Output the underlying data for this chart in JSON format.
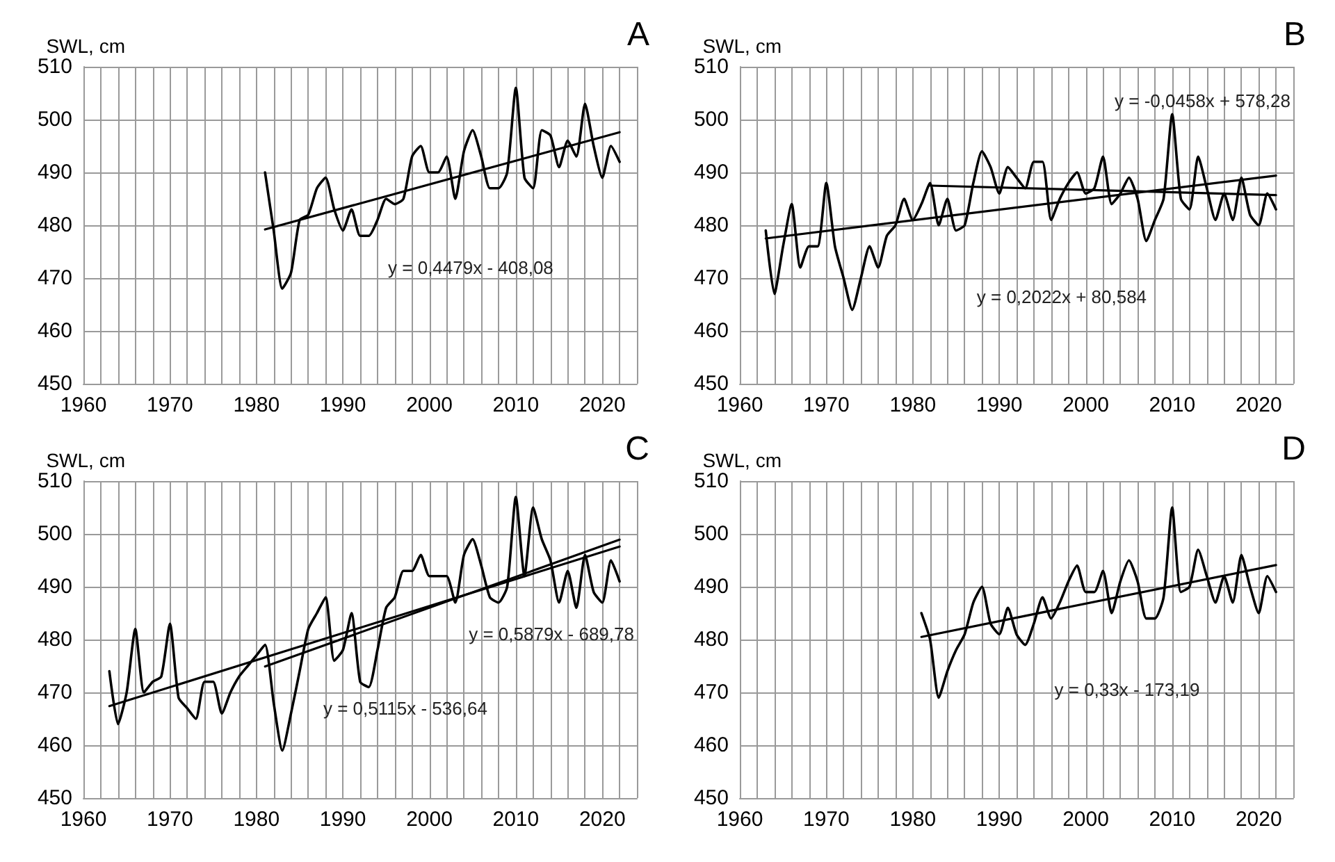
{
  "chart_data": [
    {
      "type": "line",
      "title": "A",
      "ylabel": "SWL, cm",
      "xlim": [
        1960,
        2024
      ],
      "ylim": [
        450,
        510
      ],
      "yticks": [
        450,
        460,
        470,
        480,
        490,
        500,
        510
      ],
      "xticks": [
        1960,
        {
          "value": 1962,
          "label": null
        },
        {
          "value": 1964,
          "label": null
        },
        {
          "value": 1966,
          "label": null
        },
        {
          "value": 1968,
          "label": null
        },
        1970,
        {
          "value": 1972,
          "label": null
        },
        {
          "value": 1974,
          "label": null
        },
        {
          "value": 1976,
          "label": null
        },
        {
          "value": 1978,
          "label": null
        },
        1980,
        {
          "value": 1982,
          "label": null
        },
        {
          "value": 1984,
          "label": null
        },
        {
          "value": 1986,
          "label": null
        },
        {
          "value": 1988,
          "label": null
        },
        1990,
        {
          "value": 1992,
          "label": null
        },
        {
          "value": 1994,
          "label": null
        },
        {
          "value": 1996,
          "label": null
        },
        {
          "value": 1998,
          "label": null
        },
        2000,
        {
          "value": 2002,
          "label": null
        },
        {
          "value": 2004,
          "label": null
        },
        {
          "value": 2006,
          "label": null
        },
        {
          "value": 2008,
          "label": null
        },
        2010,
        {
          "value": 2012,
          "label": null
        },
        {
          "value": 2014,
          "label": null
        },
        {
          "value": 2016,
          "label": null
        },
        {
          "value": 2018,
          "label": null
        },
        2020,
        {
          "value": 2022,
          "label": null
        },
        {
          "value": 2024,
          "label": null
        }
      ],
      "grid": true,
      "marker": "none",
      "line_style": "solid",
      "series": [
        {
          "color": "#000000",
          "x": [
            1981,
            1982,
            1983,
            1984,
            1985,
            1986,
            1987,
            1988,
            1989,
            1990,
            1991,
            1992,
            1993,
            1994,
            1995,
            1996,
            1997,
            1998,
            1999,
            2000,
            2001,
            2002,
            2003,
            2004,
            2005,
            2006,
            2007,
            2008,
            2009,
            2010,
            2011,
            2012,
            2013,
            2014,
            2015,
            2016,
            2017,
            2018,
            2019,
            2020,
            2021,
            2022
          ],
          "values": [
            490,
            479,
            468,
            471,
            481,
            482,
            487,
            489,
            483,
            479,
            483,
            478,
            478,
            481,
            485,
            484,
            485,
            493,
            495,
            490,
            490,
            493,
            485,
            494,
            498,
            493,
            487,
            487,
            490,
            506,
            489,
            487,
            498,
            497,
            491,
            496,
            493,
            503,
            495,
            489,
            495,
            492
          ]
        },
        {
          "type": "line",
          "color": "#000000",
          "x": [
            1981,
            2022
          ],
          "values": [
            479.2,
            497.6
          ]
        }
      ],
      "annotations": [
        "y = 0,4479x - 408,08"
      ]
    },
    {
      "type": "line",
      "title": "B",
      "ylabel": "SWL, cm",
      "xlim": [
        1960,
        2024
      ],
      "ylim": [
        450,
        510
      ],
      "yticks": [
        450,
        460,
        470,
        480,
        490,
        500,
        510
      ],
      "xticks": [
        1960,
        {
          "value": 1962,
          "label": null
        },
        {
          "value": 1964,
          "label": null
        },
        {
          "value": 1966,
          "label": null
        },
        {
          "value": 1968,
          "label": null
        },
        1970,
        {
          "value": 1972,
          "label": null
        },
        {
          "value": 1974,
          "label": null
        },
        {
          "value": 1976,
          "label": null
        },
        {
          "value": 1978,
          "label": null
        },
        1980,
        {
          "value": 1982,
          "label": null
        },
        {
          "value": 1984,
          "label": null
        },
        {
          "value": 1986,
          "label": null
        },
        {
          "value": 1988,
          "label": null
        },
        1990,
        {
          "value": 1992,
          "label": null
        },
        {
          "value": 1994,
          "label": null
        },
        {
          "value": 1996,
          "label": null
        },
        {
          "value": 1998,
          "label": null
        },
        2000,
        {
          "value": 2002,
          "label": null
        },
        {
          "value": 2004,
          "label": null
        },
        {
          "value": 2006,
          "label": null
        },
        {
          "value": 2008,
          "label": null
        },
        2010,
        {
          "value": 2012,
          "label": null
        },
        {
          "value": 2014,
          "label": null
        },
        {
          "value": 2016,
          "label": null
        },
        {
          "value": 2018,
          "label": null
        },
        2020,
        {
          "value": 2022,
          "label": null
        },
        {
          "value": 2024,
          "label": null
        }
      ],
      "grid": true,
      "marker": "none",
      "line_style": "solid",
      "series": [
        {
          "color": "#000000",
          "x": [
            1963,
            1964,
            1965,
            1966,
            1967,
            1968,
            1969,
            1970,
            1971,
            1972,
            1973,
            1974,
            1975,
            1976,
            1977,
            1978,
            1979,
            1980,
            1981,
            1982,
            1983,
            1984,
            1985,
            1986,
            1987,
            1988,
            1989,
            1990,
            1991,
            1992,
            1993,
            1994,
            1995,
            1996,
            1997,
            1998,
            1999,
            2000,
            2001,
            2002,
            2003,
            2004,
            2005,
            2006,
            2007,
            2008,
            2009,
            2010,
            2011,
            2012,
            2013,
            2014,
            2015,
            2016,
            2017,
            2018,
            2019,
            2020,
            2021,
            2022
          ],
          "values": [
            479,
            467,
            476,
            484,
            472,
            476,
            476,
            488,
            476,
            470,
            464,
            470,
            476,
            472,
            478,
            480,
            485,
            481,
            484,
            488,
            480,
            485,
            479,
            480,
            488,
            494,
            491,
            486,
            491,
            489,
            487,
            492,
            492,
            481,
            485,
            488,
            490,
            486,
            487,
            493,
            484,
            486,
            489,
            485,
            477,
            481,
            485,
            501,
            485,
            483,
            493,
            487,
            481,
            486,
            481,
            489,
            482,
            480,
            486,
            483
          ]
        },
        {
          "type": "line",
          "color": "#000000",
          "x": [
            1963,
            2022
          ],
          "values": [
            477.5,
            489.4
          ]
        },
        {
          "type": "line",
          "color": "#000000",
          "x": [
            1982,
            2022
          ],
          "values": [
            487.5,
            485.7
          ]
        }
      ],
      "annotations": [
        "y = 0,2022x + 80,584",
        "y = -0,0458x + 578,28"
      ]
    },
    {
      "type": "line",
      "title": "C",
      "ylabel": "SWL, cm",
      "xlim": [
        1960,
        2024
      ],
      "ylim": [
        450,
        510
      ],
      "yticks": [
        450,
        460,
        470,
        480,
        490,
        500,
        510
      ],
      "xticks": [
        1960,
        {
          "value": 1962,
          "label": null
        },
        {
          "value": 1964,
          "label": null
        },
        {
          "value": 1966,
          "label": null
        },
        {
          "value": 1968,
          "label": null
        },
        1970,
        {
          "value": 1972,
          "label": null
        },
        {
          "value": 1974,
          "label": null
        },
        {
          "value": 1976,
          "label": null
        },
        {
          "value": 1978,
          "label": null
        },
        1980,
        {
          "value": 1982,
          "label": null
        },
        {
          "value": 1984,
          "label": null
        },
        {
          "value": 1986,
          "label": null
        },
        {
          "value": 1988,
          "label": null
        },
        1990,
        {
          "value": 1992,
          "label": null
        },
        {
          "value": 1994,
          "label": null
        },
        {
          "value": 1996,
          "label": null
        },
        {
          "value": 1998,
          "label": null
        },
        2000,
        {
          "value": 2002,
          "label": null
        },
        {
          "value": 2004,
          "label": null
        },
        {
          "value": 2006,
          "label": null
        },
        {
          "value": 2008,
          "label": null
        },
        2010,
        {
          "value": 2012,
          "label": null
        },
        {
          "value": 2014,
          "label": null
        },
        {
          "value": 2016,
          "label": null
        },
        {
          "value": 2018,
          "label": null
        },
        2020,
        {
          "value": 2022,
          "label": null
        },
        {
          "value": 2024,
          "label": null
        }
      ],
      "grid": true,
      "marker": "none",
      "line_style": "solid",
      "series": [
        {
          "color": "#000000",
          "x": [
            1963,
            1964,
            1965,
            1966,
            1967,
            1968,
            1969,
            1970,
            1971,
            1972,
            1973,
            1974,
            1975,
            1976,
            1977,
            1978,
            1979,
            1980,
            1981,
            1982,
            1983,
            1984,
            1985,
            1986,
            1987,
            1988,
            1989,
            1990,
            1991,
            1992,
            1993,
            1994,
            1995,
            1996,
            1997,
            1998,
            1999,
            2000,
            2001,
            2002,
            2003,
            2004,
            2005,
            2006,
            2007,
            2008,
            2009,
            2010,
            2011,
            2012,
            2013,
            2014,
            2015,
            2016,
            2017,
            2018,
            2019,
            2020,
            2021,
            2022
          ],
          "values": [
            474,
            464,
            470,
            482,
            470,
            472,
            473,
            483,
            469,
            467,
            465,
            472,
            472,
            466,
            470,
            473,
            475,
            477,
            479,
            468,
            459,
            466,
            474,
            482,
            485,
            488,
            476,
            478,
            485,
            472,
            471,
            478,
            486,
            488,
            493,
            493,
            496,
            492,
            492,
            492,
            487,
            496,
            499,
            494,
            488,
            487,
            490,
            507,
            492,
            505,
            499,
            495,
            487,
            493,
            486,
            496,
            489,
            487,
            495,
            491
          ]
        },
        {
          "type": "line",
          "color": "#000000",
          "x": [
            1963,
            2022
          ],
          "values": [
            467.4,
            497.6
          ]
        },
        {
          "type": "line",
          "color": "#000000",
          "x": [
            1981,
            2022
          ],
          "values": [
            474.9,
            498.9
          ]
        }
      ],
      "annotations": [
        "y = 0,5115x - 536,64",
        "y = 0,5879x - 689,78"
      ]
    },
    {
      "type": "line",
      "title": "D",
      "ylabel": "SWL, cm",
      "xlim": [
        1960,
        2024
      ],
      "ylim": [
        450,
        510
      ],
      "yticks": [
        450,
        460,
        470,
        480,
        490,
        500,
        510
      ],
      "xticks": [
        1960,
        {
          "value": 1962,
          "label": null
        },
        {
          "value": 1964,
          "label": null
        },
        {
          "value": 1966,
          "label": null
        },
        {
          "value": 1968,
          "label": null
        },
        1970,
        {
          "value": 1972,
          "label": null
        },
        {
          "value": 1974,
          "label": null
        },
        {
          "value": 1976,
          "label": null
        },
        {
          "value": 1978,
          "label": null
        },
        1980,
        {
          "value": 1982,
          "label": null
        },
        {
          "value": 1984,
          "label": null
        },
        {
          "value": 1986,
          "label": null
        },
        {
          "value": 1988,
          "label": null
        },
        1990,
        {
          "value": 1992,
          "label": null
        },
        {
          "value": 1994,
          "label": null
        },
        {
          "value": 1996,
          "label": null
        },
        {
          "value": 1998,
          "label": null
        },
        2000,
        {
          "value": 2002,
          "label": null
        },
        {
          "value": 2004,
          "label": null
        },
        {
          "value": 2006,
          "label": null
        },
        {
          "value": 2008,
          "label": null
        },
        2010,
        {
          "value": 2012,
          "label": null
        },
        {
          "value": 2014,
          "label": null
        },
        {
          "value": 2016,
          "label": null
        },
        {
          "value": 2018,
          "label": null
        },
        2020,
        {
          "value": 2022,
          "label": null
        },
        {
          "value": 2024,
          "label": null
        }
      ],
      "grid": true,
      "marker": "none",
      "line_style": "solid",
      "series": [
        {
          "color": "#000000",
          "x": [
            1981,
            1982,
            1983,
            1984,
            1985,
            1986,
            1987,
            1988,
            1989,
            1990,
            1991,
            1992,
            1993,
            1994,
            1995,
            1996,
            1997,
            1998,
            1999,
            2000,
            2001,
            2002,
            2003,
            2004,
            2005,
            2006,
            2007,
            2008,
            2009,
            2010,
            2011,
            2012,
            2013,
            2014,
            2015,
            2016,
            2017,
            2018,
            2019,
            2020,
            2021,
            2022
          ],
          "values": [
            485,
            480,
            469,
            474,
            478,
            481,
            487,
            490,
            483,
            481,
            486,
            481,
            479,
            483,
            488,
            484,
            487,
            491,
            494,
            489,
            489,
            493,
            485,
            491,
            495,
            491,
            484,
            484,
            488,
            505,
            489,
            490,
            497,
            492,
            487,
            492,
            487,
            496,
            490,
            485,
            492,
            489
          ]
        },
        {
          "type": "line",
          "color": "#000000",
          "x": [
            1981,
            2022
          ],
          "values": [
            480.5,
            494.1
          ]
        }
      ],
      "annotations": [
        "y = 0,33x - 173,19"
      ]
    }
  ]
}
